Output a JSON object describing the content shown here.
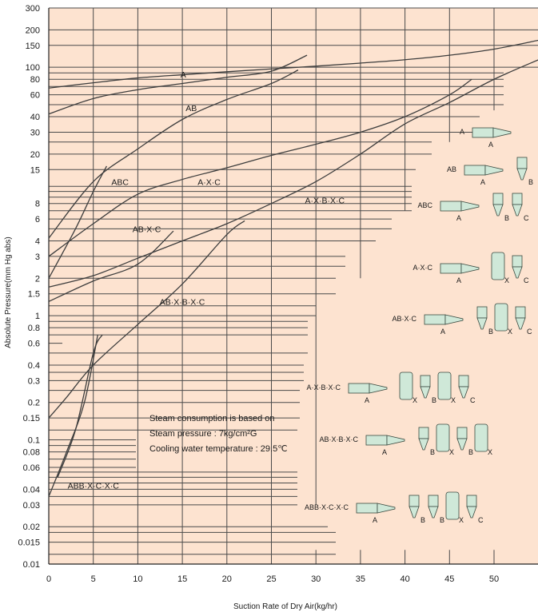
{
  "chart_data": {
    "type": "line",
    "xlabel": "Suction Rate of Dry Air(kg/hr)",
    "ylabel": "Absolute Pressure(mm Hg abs)",
    "xlim": [
      0,
      55
    ],
    "ylim": [
      0.01,
      300
    ],
    "y_scale": "log",
    "grid": "staircase horizontal lines and vertical lines at 5, 10, ... 50",
    "background": "#fde3d0",
    "line_color": "#4a4a4a",
    "x_ticks": [
      0,
      5,
      10,
      15,
      20,
      25,
      30,
      35,
      40,
      45,
      50
    ],
    "y_ticks": [
      300,
      200,
      150,
      100,
      80,
      60,
      40,
      30,
      20,
      15,
      8,
      6,
      4,
      3,
      2,
      1.5,
      1,
      0.8,
      0.6,
      0.4,
      0.3,
      0.2,
      0.15,
      0.1,
      0.08,
      0.06,
      0.04,
      0.03,
      0.02,
      0.015,
      0.01
    ],
    "y_tick_labels": [
      "300",
      "200",
      "150",
      "100",
      "80",
      "60",
      "40",
      "30",
      "20",
      "15",
      "8",
      "6",
      "4",
      "3",
      "2",
      "1.5",
      "1",
      "0.8",
      "0.6",
      "0.4",
      "0.3",
      "0.2",
      "0.15",
      "0.1",
      "0.08",
      "0.06",
      "0.04",
      "0.03",
      "0.02",
      "0.015",
      "0.01"
    ],
    "series": [
      {
        "name": "A",
        "points": [
          [
            0,
            68
          ],
          [
            5,
            75
          ],
          [
            10,
            82
          ],
          [
            15,
            87
          ],
          [
            20,
            92
          ],
          [
            25,
            97
          ],
          [
            30,
            102
          ],
          [
            35,
            108
          ],
          [
            40,
            115
          ],
          [
            45,
            125
          ],
          [
            50,
            140
          ],
          [
            55,
            165
          ]
        ]
      },
      {
        "name": "AB",
        "points": [
          [
            0,
            42
          ],
          [
            5,
            56
          ],
          [
            10,
            66
          ],
          [
            15,
            74
          ],
          [
            20,
            83
          ],
          [
            25,
            93
          ],
          [
            29,
            125
          ]
        ]
      },
      {
        "name": "ABC",
        "points": [
          [
            0,
            2
          ],
          [
            3,
            5
          ],
          [
            5,
            10
          ],
          [
            6.5,
            16
          ]
        ]
      },
      {
        "name": "A·X·C",
        "points": [
          [
            0,
            4.2
          ],
          [
            5,
            12
          ],
          [
            10,
            22
          ],
          [
            15,
            38
          ],
          [
            20,
            55
          ],
          [
            25,
            74
          ],
          [
            28,
            95
          ]
        ]
      },
      {
        "name": "A·X·B·X·C",
        "points": [
          [
            0,
            3
          ],
          [
            5,
            5.5
          ],
          [
            10,
            9.5
          ],
          [
            15,
            12.5
          ],
          [
            20,
            15.5
          ],
          [
            25,
            19.5
          ],
          [
            30,
            24
          ],
          [
            35,
            30
          ],
          [
            40,
            40
          ],
          [
            45,
            60
          ],
          [
            47.5,
            80
          ]
        ]
      },
      {
        "name": "AB·X·C",
        "points": [
          [
            0,
            1.3
          ],
          [
            5,
            1.9
          ],
          [
            10,
            2.6
          ],
          [
            14,
            4.8
          ]
        ]
      },
      {
        "name": "AB·X·B·X·C",
        "points": [
          [
            0,
            1.7
          ],
          [
            5,
            2.1
          ],
          [
            10,
            2.9
          ],
          [
            15,
            4.0
          ],
          [
            20,
            5.5
          ],
          [
            25,
            8
          ],
          [
            30,
            12
          ],
          [
            35,
            20
          ],
          [
            40,
            35
          ],
          [
            45,
            52
          ],
          [
            50,
            80
          ],
          [
            55,
            115
          ]
        ]
      },
      {
        "name": "ABB·X·C·X·C",
        "points": [
          [
            0,
            0.15
          ],
          [
            2,
            0.22
          ],
          [
            5,
            0.4
          ],
          [
            10,
            0.85
          ],
          [
            15,
            1.8
          ],
          [
            20,
            4.5
          ],
          [
            22,
            5.8
          ]
        ]
      },
      {
        "name": "",
        "points": [
          [
            0,
            0.035
          ],
          [
            2,
            0.08
          ],
          [
            4,
            0.2
          ],
          [
            5.5,
            0.7
          ]
        ]
      },
      {
        "name": "",
        "points": [
          [
            1,
            0.05
          ],
          [
            3,
            0.12
          ],
          [
            5,
            0.5
          ],
          [
            6,
            0.7
          ]
        ]
      }
    ],
    "annotations": [
      "Steam consumption is based on",
      "Steam pressure : 7kg/cm²G",
      "Cooling water temperature : 29.5℃"
    ],
    "diagram_labels": [
      "A",
      "AB",
      "ABC",
      "A·X·C",
      "AB·X·C",
      "A·X·B·X·C",
      "AB·X·B·X·C",
      "ABB·X·C·X·C"
    ],
    "diagram_component_labels": [
      "A",
      "B",
      "C",
      "X"
    ]
  }
}
